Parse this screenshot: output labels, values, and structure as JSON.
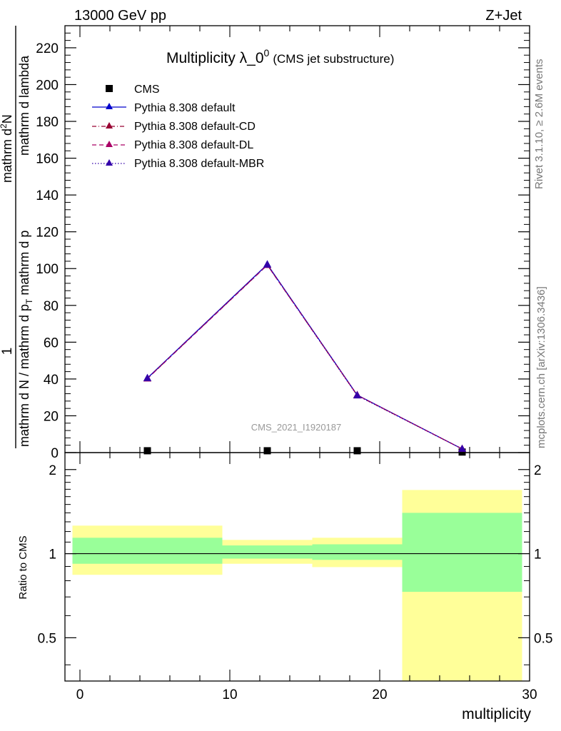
{
  "header": {
    "left": "13000 GeV pp",
    "right": "Z+Jet"
  },
  "side_labels": {
    "rivet": "Rivet 3.1.10, ≥ 2.6M events",
    "mcplots": "mcplots.cern.ch [arXiv:1306.3436]"
  },
  "chart_data": [
    {
      "type": "line",
      "title": "Multiplicity λ_0",
      "title_superscript": "0",
      "subtitle": "(CMS jet substructure)",
      "watermark": "CMS_2021_I1920187",
      "ylabel_numerator": "1",
      "ylabel_denominator": "mathrm d N / mathrm d p",
      "ylabel_denominator_sub": "T",
      "ylabel_denominator_tail": " mathrm d p",
      "ylabel_denominator_tail2": "mathrm d lambda",
      "ylabel_right_numerator": "mathrm d",
      "ylabel_right_numerator_sup": "2",
      "ylabel_right_numerator_tail": "N",
      "xlim": [
        -1,
        30
      ],
      "ylim": [
        0,
        232
      ],
      "yticks": [
        0,
        20,
        40,
        60,
        80,
        100,
        120,
        140,
        160,
        180,
        200,
        220
      ],
      "ytick_labels": [
        "0",
        "20",
        "40",
        "60",
        "80",
        "100",
        "120",
        "140",
        "160",
        "180",
        "200",
        "220"
      ],
      "legend_position": "top-left",
      "series": [
        {
          "name": "CMS",
          "color": "#000000",
          "marker": "square",
          "line": "none",
          "x": [
            4.5,
            12.5,
            18.5,
            25.5
          ],
          "y": [
            1,
            1,
            1,
            0.3
          ]
        },
        {
          "name": "Pythia 8.308 default",
          "color": "#0000cc",
          "marker": "triangle",
          "line": "solid",
          "x": [
            4.5,
            12.5,
            18.5,
            25.5
          ],
          "y": [
            40.5,
            102.3,
            31.3,
            2.0
          ]
        },
        {
          "name": "Pythia 8.308 default-CD",
          "color": "#990033",
          "marker": "triangle",
          "line": "dashdot",
          "x": [
            4.5,
            12.5,
            18.5,
            25.5
          ],
          "y": [
            40.3,
            102.0,
            31.1,
            2.0
          ]
        },
        {
          "name": "Pythia 8.308 default-DL",
          "color": "#aa0066",
          "marker": "triangle",
          "line": "dashed",
          "x": [
            4.5,
            12.5,
            18.5,
            25.5
          ],
          "y": [
            40.2,
            101.9,
            31.2,
            2.0
          ]
        },
        {
          "name": "Pythia 8.308 default-MBR",
          "color": "#3300aa",
          "marker": "triangle",
          "line": "dotted",
          "x": [
            4.5,
            12.5,
            18.5,
            25.5
          ],
          "y": [
            40.4,
            102.1,
            31.0,
            2.0
          ]
        }
      ]
    },
    {
      "type": "area",
      "ylabel": "Ratio to CMS",
      "xlabel": "multiplicity",
      "xlim": [
        -1,
        30
      ],
      "ylim": [
        0.35,
        2.3
      ],
      "yscale": "log",
      "yticks": [
        0.5,
        1,
        2
      ],
      "ytick_labels": [
        "0.5",
        "1",
        "2"
      ],
      "xticks": [
        0,
        10,
        20,
        30
      ],
      "xtick_labels": [
        "0",
        "10",
        "20",
        "30"
      ],
      "reference_line": 1,
      "bins": [
        {
          "x_low": -0.5,
          "x_high": 9.5,
          "yellow": [
            0.84,
            1.26
          ],
          "green": [
            0.92,
            1.14
          ]
        },
        {
          "x_low": 9.5,
          "x_high": 15.5,
          "yellow": [
            0.92,
            1.12
          ],
          "green": [
            0.96,
            1.07
          ]
        },
        {
          "x_low": 15.5,
          "x_high": 21.5,
          "yellow": [
            0.895,
            1.14
          ],
          "green": [
            0.95,
            1.08
          ]
        },
        {
          "x_low": 21.5,
          "x_high": 29.5,
          "yellow": [
            0.35,
            1.69
          ],
          "green": [
            0.73,
            1.4
          ]
        }
      ],
      "band_colors": {
        "yellow": "#ffff99",
        "green": "#99ff99"
      }
    }
  ]
}
